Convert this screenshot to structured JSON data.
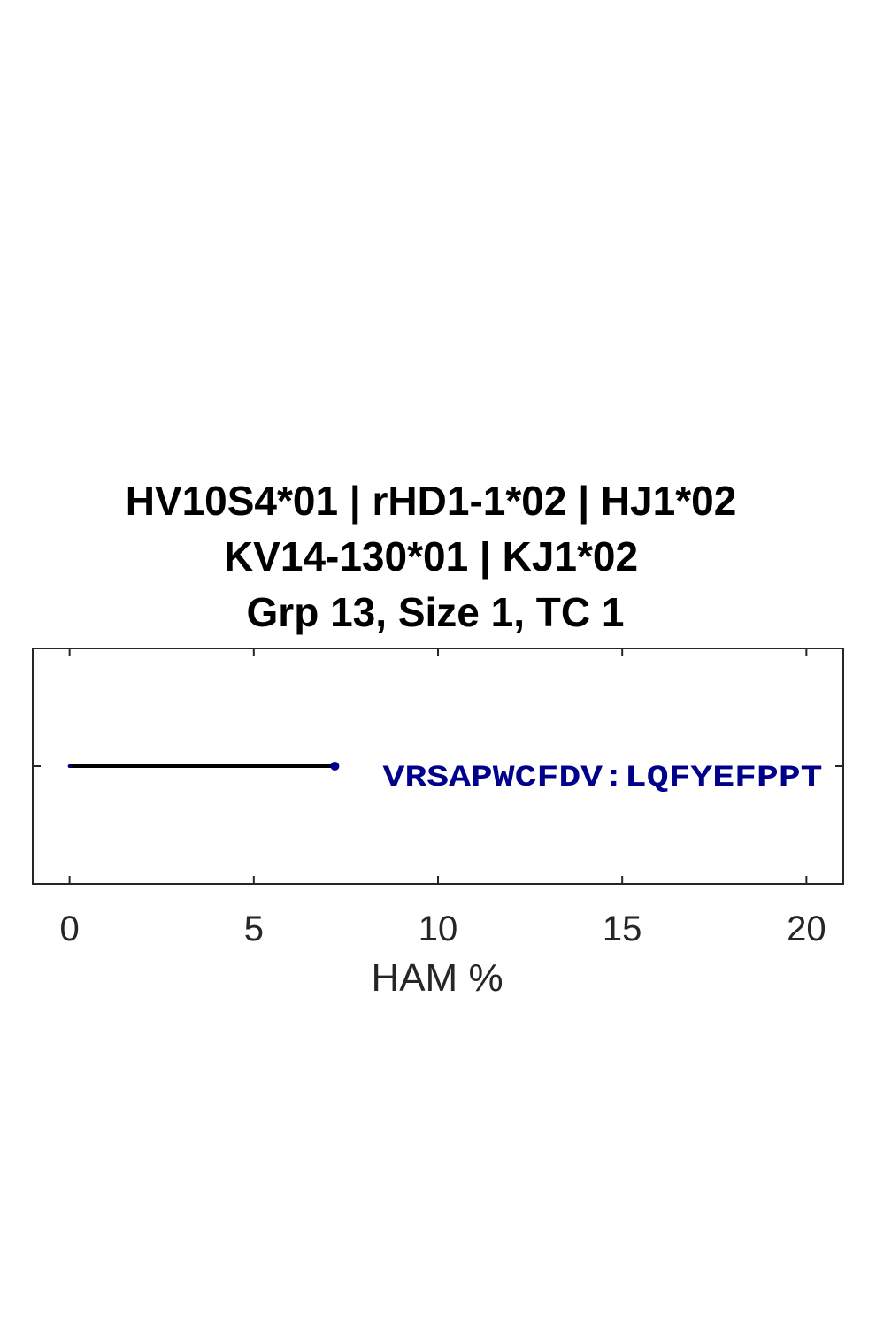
{
  "chart_data": {
    "type": "line",
    "title_lines": [
      "HV10S4*01 | rHD1-1*02 | HJ1*02",
      "KV14-130*01 | KJ1*02",
      "Grp 13, Size 1, TC 1"
    ],
    "xlabel": "HAM %",
    "ylabel": "",
    "xlim": [
      -1,
      21
    ],
    "ylim": [
      0,
      2
    ],
    "xticks": [
      0,
      5,
      10,
      15,
      20
    ],
    "xtick_labels": [
      "0",
      "5",
      "10",
      "15",
      "20"
    ],
    "grid": false,
    "legend": "none",
    "series": [
      {
        "x": [
          0,
          7.2
        ],
        "y": [
          1,
          1
        ],
        "color": "#000000"
      }
    ],
    "points": [
      {
        "x": 0,
        "y": 1,
        "color": "#00008B",
        "marker": "small-dot"
      },
      {
        "x": 7.2,
        "y": 1,
        "color": "#00008B",
        "marker": "dot"
      }
    ],
    "annotations": [
      {
        "text": "VRSAPWCFDV:LQFYEFPPT",
        "x": 8.5,
        "y": 1,
        "color": "#00008B"
      }
    ]
  }
}
